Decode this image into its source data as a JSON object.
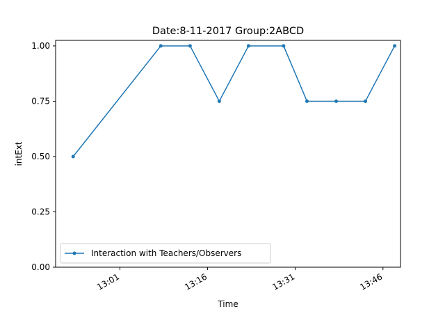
{
  "chart_data": {
    "type": "line",
    "title": "Date:8-11-2017  Group:2ABCD",
    "xlabel": "Time",
    "ylabel": "intExt",
    "x": [
      "12:53",
      "13:08",
      "13:13",
      "13:18",
      "13:23",
      "13:29",
      "13:33",
      "13:38",
      "13:43",
      "13:48"
    ],
    "x_ticks": [
      "13:01",
      "13:16",
      "13:31",
      "13:46"
    ],
    "y_ticks": [
      "0.00",
      "0.25",
      "0.50",
      "0.75",
      "1.00"
    ],
    "ylim": [
      0,
      1.025
    ],
    "xlim": [
      "12:50",
      "13:49"
    ],
    "series": [
      {
        "name": "Interaction with Teachers/Observers",
        "values": [
          0.5,
          1.0,
          1.0,
          0.75,
          1.0,
          1.0,
          0.75,
          0.75,
          0.75,
          1.0
        ],
        "color": "#1f77b4"
      }
    ],
    "legend_position": "lower-left",
    "grid": false
  }
}
